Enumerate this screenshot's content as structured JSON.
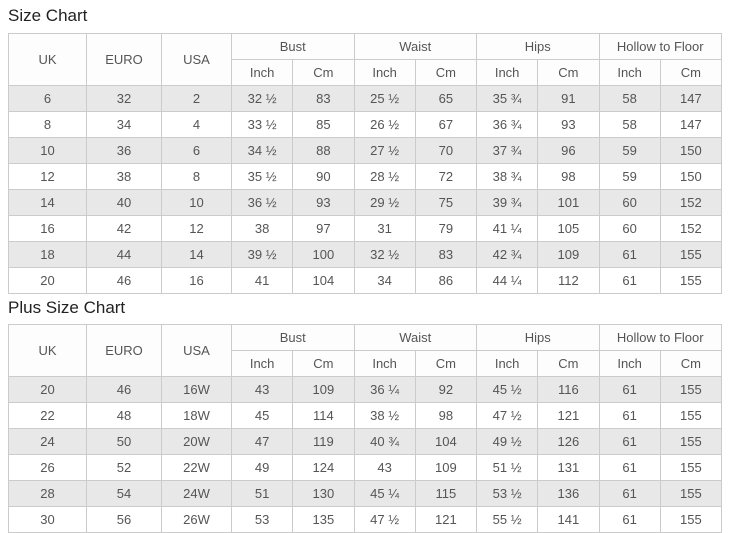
{
  "colors": {
    "border": "#cbcbcb",
    "row_stripe": "#e8e8e8",
    "cell_text": "#555555",
    "title_text": "#222222"
  },
  "tables": [
    {
      "title": "Size Chart",
      "columns": [
        "UK",
        "EURO",
        "USA"
      ],
      "groups": [
        {
          "label": "Bust",
          "units": [
            "Inch",
            "Cm"
          ]
        },
        {
          "label": "Waist",
          "units": [
            "Inch",
            "Cm"
          ]
        },
        {
          "label": "Hips",
          "units": [
            "Inch",
            "Cm"
          ]
        },
        {
          "label": "Hollow to Floor",
          "units": [
            "Inch",
            "Cm"
          ]
        }
      ],
      "rows": [
        [
          "6",
          "32",
          "2",
          "32 ½",
          "83",
          "25 ½",
          "65",
          "35 ¾",
          "91",
          "58",
          "147"
        ],
        [
          "8",
          "34",
          "4",
          "33 ½",
          "85",
          "26 ½",
          "67",
          "36 ¾",
          "93",
          "58",
          "147"
        ],
        [
          "10",
          "36",
          "6",
          "34 ½",
          "88",
          "27 ½",
          "70",
          "37 ¾",
          "96",
          "59",
          "150"
        ],
        [
          "12",
          "38",
          "8",
          "35 ½",
          "90",
          "28 ½",
          "72",
          "38 ¾",
          "98",
          "59",
          "150"
        ],
        [
          "14",
          "40",
          "10",
          "36 ½",
          "93",
          "29 ½",
          "75",
          "39 ¾",
          "101",
          "60",
          "152"
        ],
        [
          "16",
          "42",
          "12",
          "38",
          "97",
          "31",
          "79",
          "41 ¼",
          "105",
          "60",
          "152"
        ],
        [
          "18",
          "44",
          "14",
          "39 ½",
          "100",
          "32 ½",
          "83",
          "42 ¾",
          "109",
          "61",
          "155"
        ],
        [
          "20",
          "46",
          "16",
          "41",
          "104",
          "34",
          "86",
          "44 ¼",
          "112",
          "61",
          "155"
        ]
      ]
    },
    {
      "title": "Plus Size Chart",
      "columns": [
        "UK",
        "EURO",
        "USA"
      ],
      "groups": [
        {
          "label": "Bust",
          "units": [
            "Inch",
            "Cm"
          ]
        },
        {
          "label": "Waist",
          "units": [
            "Inch",
            "Cm"
          ]
        },
        {
          "label": "Hips",
          "units": [
            "Inch",
            "Cm"
          ]
        },
        {
          "label": "Hollow to Floor",
          "units": [
            "Inch",
            "Cm"
          ]
        }
      ],
      "rows": [
        [
          "20",
          "46",
          "16W",
          "43",
          "109",
          "36 ¼",
          "92",
          "45 ½",
          "116",
          "61",
          "155"
        ],
        [
          "22",
          "48",
          "18W",
          "45",
          "114",
          "38 ½",
          "98",
          "47 ½",
          "121",
          "61",
          "155"
        ],
        [
          "24",
          "50",
          "20W",
          "47",
          "119",
          "40 ¾",
          "104",
          "49 ½",
          "126",
          "61",
          "155"
        ],
        [
          "26",
          "52",
          "22W",
          "49",
          "124",
          "43",
          "109",
          "51 ½",
          "131",
          "61",
          "155"
        ],
        [
          "28",
          "54",
          "24W",
          "51",
          "130",
          "45 ¼",
          "115",
          "53 ½",
          "136",
          "61",
          "155"
        ],
        [
          "30",
          "56",
          "26W",
          "53",
          "135",
          "47 ½",
          "121",
          "55 ½",
          "141",
          "61",
          "155"
        ]
      ]
    }
  ]
}
